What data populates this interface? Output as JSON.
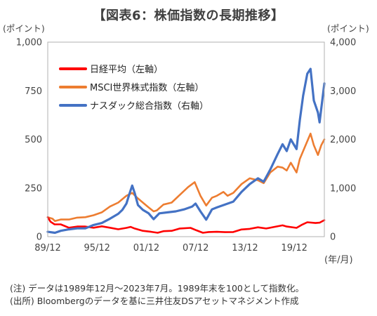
{
  "title": "【図表6：株価指数の長期推移】",
  "notes": [
    "(注) データは1989年12月～2023年7月。1989年末を100として指数化。",
    "(出所) Bloombergのデータを基に三井住友DSアセットマネジメント作成"
  ],
  "chart_data": {
    "type": "line",
    "title": "【図表6：株価指数の長期推移】",
    "left_axis": {
      "label": "(ポイント)",
      "range": [
        0,
        1000
      ],
      "ticks": [
        "0",
        "250",
        "500",
        "750",
        "1,000"
      ]
    },
    "right_axis": {
      "label": "(ポイント)",
      "range": [
        0,
        4000
      ],
      "ticks": [
        "0",
        "1,000",
        "2,000",
        "3,000",
        "4,000"
      ]
    },
    "x_axis": {
      "label": "(年/月)",
      "range": [
        1989.92,
        2023.58
      ],
      "ticks": [
        "89/12",
        "95/12",
        "01/12",
        "07/12",
        "13/12",
        "19/12"
      ],
      "tick_positions": [
        1989.92,
        1995.92,
        2001.92,
        2007.92,
        2013.92,
        2019.92
      ]
    },
    "legend_position": "top-left",
    "grid": false,
    "series": [
      {
        "name": "日経平均（左軸）",
        "axis": "left",
        "color": "#ff0000",
        "x": [
          1989.92,
          1990.25,
          1990.75,
          1991.5,
          1992.5,
          1993.5,
          1994.5,
          1995.5,
          1996.5,
          1997.5,
          1998.5,
          1999.5,
          2000.0,
          2000.5,
          2001.5,
          2002.5,
          2003.3,
          2004.0,
          2005.0,
          2006.0,
          2007.3,
          2008.0,
          2008.8,
          2009.5,
          2010.5,
          2011.5,
          2012.5,
          2013.5,
          2014.5,
          2015.5,
          2016.5,
          2017.5,
          2018.5,
          2019.0,
          2020.2,
          2020.9,
          2021.5,
          2022.5,
          2023.0,
          2023.58
        ],
        "values": [
          100,
          77,
          63,
          63,
          46,
          52,
          52,
          46,
          53,
          46,
          38,
          45,
          50,
          42,
          30,
          25,
          20,
          28,
          30,
          42,
          45,
          33,
          20,
          24,
          25,
          23,
          24,
          37,
          40,
          48,
          42,
          50,
          58,
          52,
          45,
          62,
          74,
          70,
          72,
          85
        ]
      },
      {
        "name": "MSCI世界株式指数（左軸）",
        "axis": "left",
        "color": "#ed7d31",
        "x": [
          1989.92,
          1990.5,
          1990.8,
          1991.5,
          1992.5,
          1993.5,
          1994.5,
          1995.5,
          1996.5,
          1997.5,
          1998.5,
          1999.5,
          2000.2,
          2000.8,
          2001.5,
          2002.2,
          2002.8,
          2003.2,
          2004.0,
          2005.0,
          2006.0,
          2007.0,
          2007.8,
          2008.5,
          2009.2,
          2009.9,
          2010.5,
          2011.3,
          2011.8,
          2012.5,
          2013.5,
          2014.5,
          2015.5,
          2016.2,
          2017.0,
          2017.9,
          2018.5,
          2019.0,
          2019.5,
          2020.2,
          2020.6,
          2021.2,
          2021.9,
          2022.3,
          2022.8,
          2023.2,
          2023.58
        ],
        "values": [
          100,
          92,
          80,
          88,
          88,
          98,
          100,
          110,
          125,
          155,
          175,
          210,
          225,
          200,
          175,
          150,
          130,
          135,
          165,
          175,
          215,
          255,
          280,
          210,
          160,
          200,
          210,
          230,
          210,
          225,
          270,
          300,
          290,
          275,
          330,
          360,
          355,
          340,
          380,
          330,
          400,
          460,
          530,
          470,
          420,
          470,
          500
        ]
      },
      {
        "name": "ナスダック総合指数（右軸）",
        "axis": "right",
        "color": "#4472c4",
        "x": [
          1989.92,
          1990.8,
          1991.5,
          1992.5,
          1993.5,
          1994.5,
          1995.5,
          1996.5,
          1997.5,
          1998.5,
          1999.0,
          1999.5,
          1999.9,
          2000.2,
          2000.5,
          2000.9,
          2001.5,
          2002.2,
          2002.8,
          2003.5,
          2004.5,
          2005.5,
          2006.5,
          2007.5,
          2007.9,
          2008.5,
          2009.2,
          2009.9,
          2010.5,
          2011.5,
          2012.5,
          2013.5,
          2014.5,
          2015.5,
          2016.2,
          2017.0,
          2017.9,
          2018.5,
          2019.0,
          2019.5,
          2020.2,
          2020.6,
          2021.0,
          2021.5,
          2021.9,
          2022.3,
          2022.8,
          2023.0,
          2023.58
        ],
        "values": [
          100,
          80,
          120,
          150,
          170,
          170,
          240,
          280,
          370,
          470,
          550,
          680,
          900,
          1050,
          900,
          650,
          550,
          480,
          360,
          480,
          500,
          520,
          560,
          620,
          680,
          520,
          350,
          560,
          600,
          660,
          720,
          920,
          1080,
          1200,
          1130,
          1380,
          1700,
          1900,
          1760,
          2000,
          1800,
          2400,
          2900,
          3350,
          3450,
          2800,
          2550,
          2350,
          3150
        ]
      }
    ]
  }
}
